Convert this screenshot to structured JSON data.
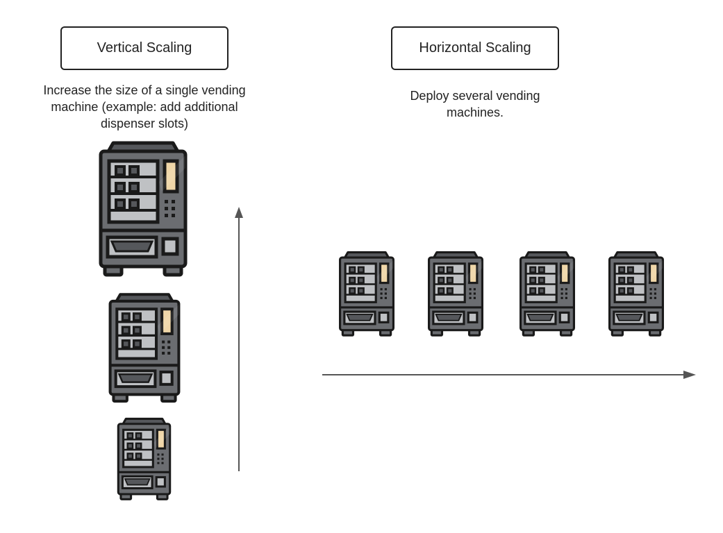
{
  "vertical": {
    "title": "Vertical Scaling",
    "description": [
      "Increase the size of a single vending",
      "machine (example: add additional",
      "dispenser slots)"
    ],
    "icon": "vending-machine-icon"
  },
  "horizontal": {
    "title": "Horizontal Scaling",
    "description": [
      "Deploy several vending",
      "machines."
    ],
    "icon": "vending-machine-icon"
  },
  "colors": {
    "outline": "#1a1a1a",
    "machine_body": "#6b6d71",
    "machine_panel": "#55575b",
    "window": "#bfc1c4",
    "display": "#efd6a8",
    "arrow": "#555555"
  }
}
